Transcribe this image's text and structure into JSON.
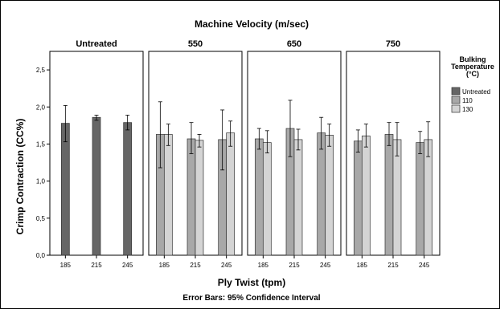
{
  "chart_data": {
    "type": "bar",
    "title": "Machine Velocity (m/sec)",
    "xlabel": "Ply Twist (tpm)",
    "ylabel": "Crimp Contraction (CC%)",
    "footnote": "Error Bars: 95% Confidence Interval",
    "ylim": [
      0,
      2.75
    ],
    "yticks": [
      "0,0",
      "0,5",
      "1,0",
      "1,5",
      "2,0",
      "2,5"
    ],
    "ytick_values": [
      0,
      0.5,
      1.0,
      1.5,
      2.0,
      2.5
    ],
    "legend": {
      "title_lines": [
        "Bulking",
        "Temperature",
        "(°C)"
      ],
      "placement": "right",
      "entries": [
        {
          "name": "Untreated",
          "color": "#666666"
        },
        {
          "name": "110",
          "color": "#a8a8a8"
        },
        {
          "name": "130",
          "color": "#d4d4d4"
        }
      ]
    },
    "categories": [
      "185",
      "215",
      "245"
    ],
    "panels": [
      {
        "label": "Untreated",
        "series": [
          {
            "name": "Untreated",
            "values": [
              1.78,
              1.86,
              1.79
            ],
            "ci_low": [
              1.53,
              1.82,
              1.69
            ],
            "ci_high": [
              2.02,
              1.89,
              1.89
            ]
          }
        ]
      },
      {
        "label": "550",
        "series": [
          {
            "name": "110",
            "values": [
              1.63,
              1.57,
              1.56
            ],
            "ci_low": [
              1.18,
              1.37,
              1.15
            ],
            "ci_high": [
              2.07,
              1.79,
              1.96
            ]
          },
          {
            "name": "130",
            "values": [
              1.63,
              1.55,
              1.65
            ],
            "ci_low": [
              1.48,
              1.46,
              1.47
            ],
            "ci_high": [
              1.77,
              1.63,
              1.81
            ]
          }
        ]
      },
      {
        "label": "650",
        "series": [
          {
            "name": "110",
            "values": [
              1.57,
              1.71,
              1.65
            ],
            "ci_low": [
              1.43,
              1.33,
              1.43
            ],
            "ci_high": [
              1.71,
              2.09,
              1.86
            ]
          },
          {
            "name": "130",
            "values": [
              1.52,
              1.56,
              1.62
            ],
            "ci_low": [
              1.38,
              1.42,
              1.47
            ],
            "ci_high": [
              1.68,
              1.7,
              1.77
            ]
          }
        ]
      },
      {
        "label": "750",
        "series": [
          {
            "name": "110",
            "values": [
              1.54,
              1.63,
              1.52
            ],
            "ci_low": [
              1.39,
              1.48,
              1.37
            ],
            "ci_high": [
              1.69,
              1.79,
              1.67
            ]
          },
          {
            "name": "130",
            "values": [
              1.61,
              1.56,
              1.56
            ],
            "ci_low": [
              1.46,
              1.34,
              1.33
            ],
            "ci_high": [
              1.77,
              1.79,
              1.8
            ]
          }
        ]
      }
    ],
    "grid": false
  }
}
